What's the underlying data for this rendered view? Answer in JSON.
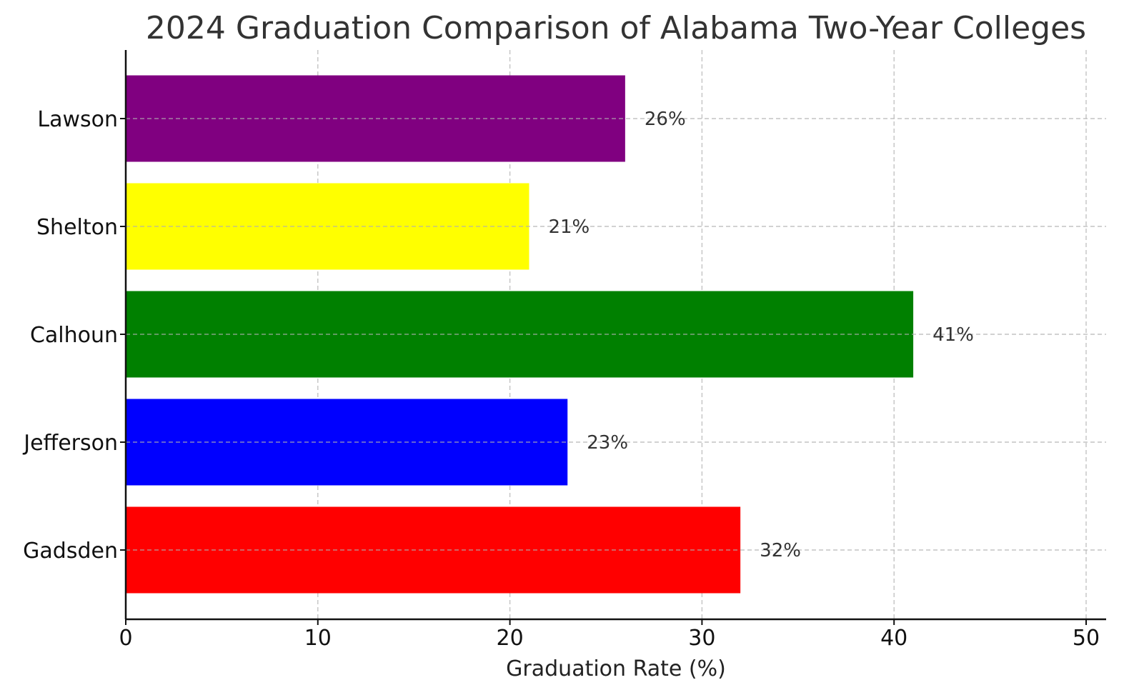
{
  "chart_data": {
    "type": "bar",
    "orientation": "horizontal",
    "title": "2024 Graduation Comparison of Alabama Two-Year Colleges",
    "xlabel": "Graduation Rate (%)",
    "ylabel": "",
    "xlim": [
      0,
      51
    ],
    "xticks": [
      0,
      10,
      20,
      30,
      40,
      50
    ],
    "grid": true,
    "categories": [
      "Gadsden",
      "Jefferson",
      "Calhoun",
      "Shelton",
      "Lawson"
    ],
    "values": [
      32,
      23,
      41,
      21,
      26
    ],
    "data_labels": [
      "32%",
      "23%",
      "41%",
      "21%",
      "26%"
    ],
    "colors": [
      "#ff0000",
      "#0000ff",
      "#008000",
      "#ffff00",
      "#800080"
    ]
  }
}
